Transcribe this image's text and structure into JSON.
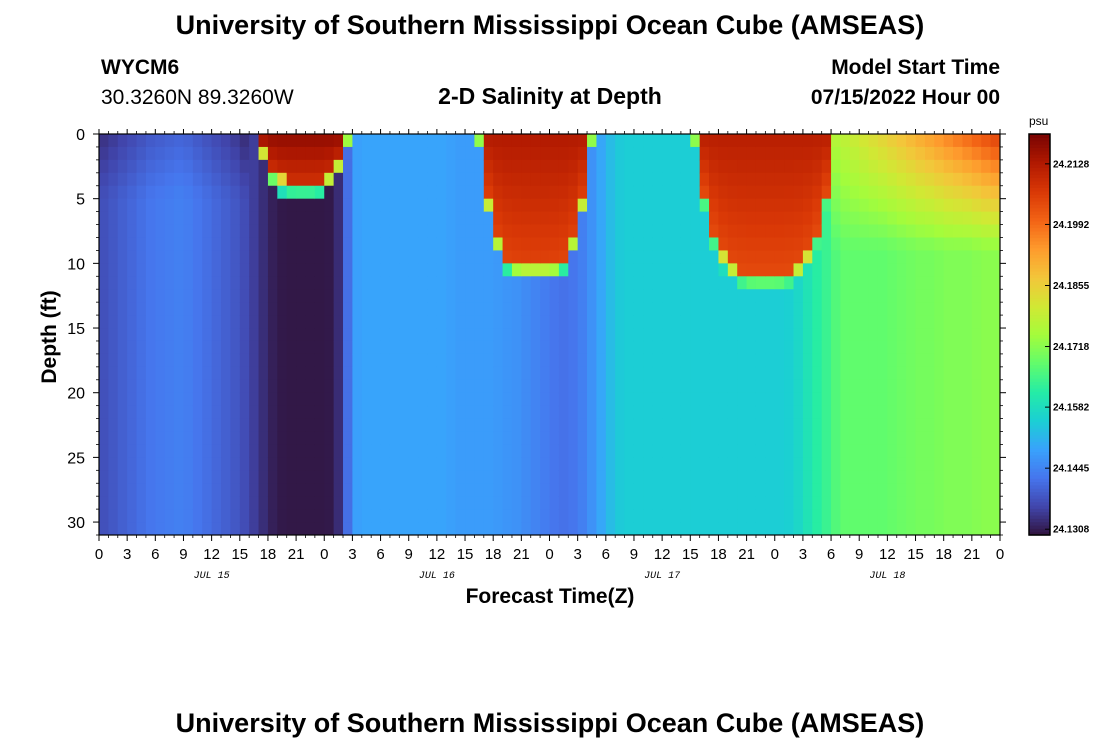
{
  "header": {
    "title": "University of Southern Mississippi Ocean Cube (AMSEAS)",
    "station_id": "WYCM6",
    "coords": "30.3260N  89.3260W",
    "plot_title": "2-D Salinity at Depth",
    "start_label": "Model Start Time",
    "start_value": "07/15/2022 Hour 00"
  },
  "footer": {
    "title": "University of Southern Mississippi Ocean Cube (AMSEAS)"
  },
  "chart_data": {
    "type": "heatmap",
    "xlabel": "Forecast Time(Z)",
    "ylabel": "Depth (ft)",
    "x_range_hours": [
      0,
      96
    ],
    "x_tick_labels": [
      "0",
      "3",
      "6",
      "9",
      "12",
      "15",
      "18",
      "21",
      "0",
      "3",
      "6",
      "9",
      "12",
      "15",
      "18",
      "21",
      "0",
      "3",
      "6",
      "9",
      "12",
      "15",
      "18",
      "21",
      "0",
      "3",
      "6",
      "9",
      "12",
      "15",
      "18",
      "21",
      "0"
    ],
    "day_labels": [
      {
        "hour": 12,
        "label": "JUL 15"
      },
      {
        "hour": 36,
        "label": "JUL 16"
      },
      {
        "hour": 60,
        "label": "JUL 17"
      },
      {
        "hour": 84,
        "label": "JUL 18"
      }
    ],
    "y_range_ft": [
      0,
      31
    ],
    "y_ticks": [
      0,
      5,
      10,
      15,
      20,
      25,
      30
    ],
    "y_inverted": true,
    "colorbar": {
      "unit": "psu",
      "min": 24.1295,
      "max": 24.2195,
      "tick_values": [
        24.1308,
        24.1445,
        24.1582,
        24.1718,
        24.1855,
        24.1992,
        24.2128
      ],
      "tick_labels": [
        "24.1308",
        "24.1445",
        "24.1582",
        "24.1718",
        "24.1855",
        "24.1992",
        "24.2128"
      ],
      "colormap": [
        "#30123b",
        "#4145ab",
        "#4675ed",
        "#39a2fc",
        "#1bcfd4",
        "#24eca6",
        "#61fc6c",
        "#a4fc3b",
        "#d1e834",
        "#f3c63a",
        "#fe9b2d",
        "#f36315",
        "#d93806",
        "#b11901",
        "#7a0402"
      ]
    },
    "salinity_profile": {
      "description_hours": [
        0,
        1,
        2,
        3,
        4,
        5,
        6,
        7,
        8,
        9,
        10,
        11,
        12,
        13,
        14,
        15,
        16,
        17,
        18,
        19,
        20,
        21,
        22,
        23,
        24,
        25,
        26,
        27,
        28,
        29,
        30,
        31,
        32,
        33,
        34,
        35,
        36,
        37,
        38,
        39,
        40,
        41,
        42,
        43,
        44,
        45,
        46,
        47,
        48,
        49,
        50,
        51,
        52,
        53,
        54,
        55,
        56,
        57,
        58,
        59,
        60,
        61,
        62,
        63,
        64,
        65,
        66,
        67,
        68,
        69,
        70,
        71,
        72,
        73,
        74,
        75,
        76,
        77,
        78,
        79,
        80,
        81,
        82,
        83,
        84,
        85,
        86,
        87,
        88,
        89,
        90,
        91,
        92,
        93,
        94,
        95,
        96
      ],
      "deep_psu": [
        24.137,
        24.138,
        24.139,
        24.14,
        24.141,
        24.142,
        24.143,
        24.143,
        24.144,
        24.144,
        24.143,
        24.142,
        24.141,
        24.14,
        24.139,
        24.138,
        24.136,
        24.134,
        24.132,
        24.1305,
        24.1302,
        24.1302,
        24.1302,
        24.1302,
        24.1302,
        24.1305,
        24.135,
        24.148,
        24.149,
        24.149,
        24.149,
        24.149,
        24.149,
        24.149,
        24.149,
        24.149,
        24.149,
        24.149,
        24.148,
        24.148,
        24.148,
        24.148,
        24.148,
        24.147,
        24.147,
        24.146,
        24.145,
        24.144,
        24.143,
        24.142,
        24.142,
        24.143,
        24.145,
        24.148,
        24.151,
        24.154,
        24.155,
        24.155,
        24.155,
        24.155,
        24.155,
        24.155,
        24.155,
        24.155,
        24.155,
        24.155,
        24.155,
        24.155,
        24.155,
        24.155,
        24.155,
        24.155,
        24.155,
        24.155,
        24.156,
        24.158,
        24.161,
        24.163,
        24.165,
        24.168,
        24.168,
        24.168,
        24.168,
        24.168,
        24.168,
        24.169,
        24.169,
        24.17,
        24.17,
        24.17,
        24.171,
        24.171,
        24.171,
        24.171,
        24.172,
        24.172,
        24.172
      ]
    }
  }
}
